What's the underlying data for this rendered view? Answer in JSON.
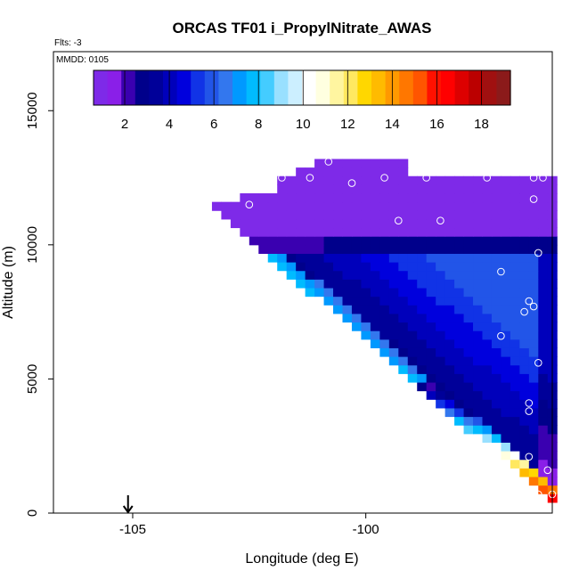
{
  "chart_data": {
    "type": "heatmap",
    "title": "ORCAS TF01 i_PropylNitrate_AWAS",
    "annotations": {
      "flights": "Flts: -3",
      "date": "MMDD: 0105"
    },
    "xlabel": "Longitude (deg E)",
    "ylabel": "Altitude (m)",
    "xlim": [
      -106.7,
      -96.0
    ],
    "ylim": [
      0,
      17200
    ],
    "xticks": [
      -105,
      -100
    ],
    "xtick_labels": [
      "-105",
      "-100"
    ],
    "yticks": [
      0,
      5000,
      10000,
      15000
    ],
    "ytick_labels": [
      "0",
      "5000",
      "10000",
      "15000"
    ],
    "colorbar": {
      "min": 0.6,
      "max": 19.3,
      "ticks": [
        2,
        4,
        6,
        8,
        10,
        12,
        14,
        16,
        18
      ],
      "tick_labels": [
        "2",
        "4",
        "6",
        "8",
        "10",
        "12",
        "14",
        "16",
        "18"
      ],
      "colors": [
        "#7e2ae8",
        "#8a1fe8",
        "#3a00b0",
        "#00008b",
        "#000099",
        "#0000bb",
        "#0000dd",
        "#1133e6",
        "#2255e8",
        "#3377ee",
        "#0099ff",
        "#00bbff",
        "#44ccff",
        "#99e0ff",
        "#ccefff",
        "#ffffff",
        "#ffffe0",
        "#fff5a0",
        "#ffe860",
        "#ffd700",
        "#ffbb00",
        "#ff9900",
        "#ff7700",
        "#ff5500",
        "#ff1100",
        "#ff0000",
        "#dd0000",
        "#bb0000",
        "#a01010",
        "#8b1a1a"
      ]
    },
    "wedge": {
      "lon_left_top": -103.3,
      "alt_top": 11400,
      "lon_right": -96.0,
      "alt_bottom": 400,
      "violet_band_bottom": 9600,
      "values_summary": "violet (~1) near top, dark blue (~2-4) mid, light blue (~5-7) interior, yellow-red (~12-19) near surface edge"
    },
    "flight_points": [
      {
        "lon": -101.5,
        "alt": 13800
      },
      {
        "lon": -101.1,
        "alt": 13500
      },
      {
        "lon": -100.8,
        "alt": 13100
      },
      {
        "lon": -101.8,
        "alt": 12500
      },
      {
        "lon": -101.2,
        "alt": 12500
      },
      {
        "lon": -99.6,
        "alt": 12500
      },
      {
        "lon": -98.7,
        "alt": 12500
      },
      {
        "lon": -97.4,
        "alt": 12500
      },
      {
        "lon": -96.4,
        "alt": 12500
      },
      {
        "lon": -96.2,
        "alt": 12500
      },
      {
        "lon": -100.3,
        "alt": 12300
      },
      {
        "lon": -102.5,
        "alt": 11500
      },
      {
        "lon": -96.4,
        "alt": 11700
      },
      {
        "lon": -99.3,
        "alt": 10900
      },
      {
        "lon": -98.4,
        "alt": 10900
      },
      {
        "lon": -96.3,
        "alt": 9700
      },
      {
        "lon": -97.1,
        "alt": 9000
      },
      {
        "lon": -96.5,
        "alt": 7900
      },
      {
        "lon": -96.4,
        "alt": 7700
      },
      {
        "lon": -96.6,
        "alt": 7500
      },
      {
        "lon": -97.1,
        "alt": 6600
      },
      {
        "lon": -96.3,
        "alt": 5600
      },
      {
        "lon": -96.5,
        "alt": 4100
      },
      {
        "lon": -96.5,
        "alt": 3800
      },
      {
        "lon": -96.5,
        "alt": 2100
      },
      {
        "lon": -96.1,
        "alt": 1600
      },
      {
        "lon": -96.3,
        "alt": 700
      },
      {
        "lon": -96.0,
        "alt": 700
      },
      {
        "lon": -96.5,
        "alt": 600
      }
    ],
    "arrow_marker": {
      "lon": -105.1,
      "alt": 0
    }
  }
}
